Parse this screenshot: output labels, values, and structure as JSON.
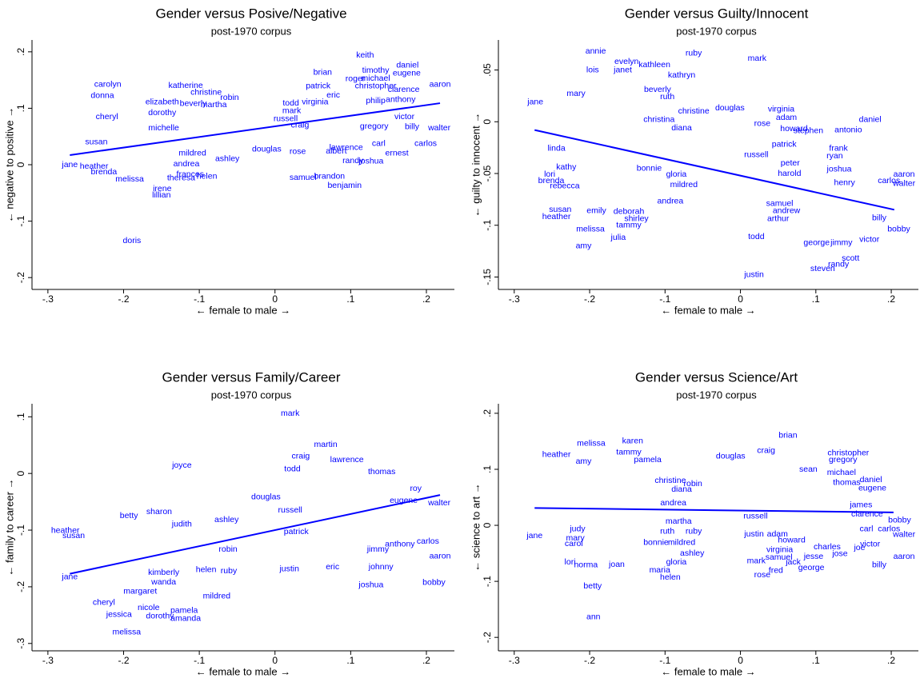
{
  "chart_data": [
    {
      "type": "scatter",
      "title": "Gender versus Posive/Negative",
      "subtitle": "post-1970 corpus",
      "x_label": "← female to male →",
      "y_label": "← negative to positive →",
      "color": "#0000ff",
      "xlim": [
        -0.321,
        0.237
      ],
      "ylim": [
        -0.221,
        0.221
      ],
      "xticks": [
        {
          "value": -0.3,
          "label": "-.3"
        },
        {
          "value": -0.2,
          "label": "-.2"
        },
        {
          "value": -0.1,
          "label": "-.1"
        },
        0,
        {
          "value": 0.1,
          "label": ".1"
        },
        {
          "value": 0.2,
          "label": ".2"
        }
      ],
      "yticks": [
        {
          "value": -0.2,
          "label": "-.2"
        },
        {
          "value": -0.1,
          "label": "-.1"
        },
        0,
        {
          "value": 0.1,
          "label": ".1"
        },
        {
          "value": 0.2,
          "label": ".2"
        }
      ],
      "labels": [
        "keith",
        "daniel",
        "eugene",
        "timothy",
        "michael",
        "aaron",
        "brian",
        "roger",
        "christopher",
        "clarence",
        "anthony",
        "victor",
        "patrick",
        "eric",
        "virginia",
        "todd",
        "mark",
        "russell",
        "craig",
        "philip",
        "gregory",
        "billy",
        "walter",
        "carl",
        "carlos",
        "ernest",
        "lawrence",
        "albert",
        "randy",
        "joshua",
        "samuel",
        "brandon",
        "benjamin",
        "douglas",
        "rose",
        "carolyn",
        "donna",
        "katherine",
        "christine",
        "robin",
        "elizabeth",
        "beverly",
        "martha",
        "dorothy",
        "cheryl",
        "michelle",
        "susan",
        "heather",
        "jane",
        "brenda",
        "melissa",
        "mildred",
        "ashley",
        "theresa",
        "helen",
        "frances",
        "irene",
        "lillian",
        "doris",
        "andrea"
      ],
      "x": [
        0.119,
        0.175,
        0.174,
        0.133,
        0.133,
        0.218,
        0.063,
        0.106,
        0.133,
        0.17,
        0.166,
        0.171,
        0.057,
        0.077,
        0.053,
        0.021,
        0.022,
        0.014,
        0.033,
        0.133,
        0.131,
        0.181,
        0.217,
        0.137,
        0.199,
        0.161,
        0.094,
        0.081,
        0.103,
        0.127,
        0.037,
        0.072,
        0.092,
        -0.011,
        0.03,
        -0.221,
        -0.228,
        -0.118,
        -0.091,
        -0.06,
        -0.149,
        -0.108,
        -0.081,
        -0.149,
        -0.222,
        -0.147,
        -0.236,
        -0.239,
        -0.271,
        -0.226,
        -0.192,
        -0.109,
        -0.063,
        -0.124,
        -0.09,
        -0.112,
        -0.149,
        -0.15,
        -0.189,
        -0.117
      ],
      "y": [
        0.194,
        0.176,
        0.162,
        0.167,
        0.153,
        0.142,
        0.163,
        0.152,
        0.139,
        0.133,
        0.115,
        0.085,
        0.139,
        0.123,
        0.111,
        0.109,
        0.095,
        0.081,
        0.07,
        0.113,
        0.068,
        0.067,
        0.065,
        0.037,
        0.037,
        0.02,
        0.03,
        0.024,
        0.007,
        0.006,
        -0.023,
        -0.021,
        -0.037,
        0.027,
        0.023,
        0.142,
        0.122,
        0.14,
        0.128,
        0.119,
        0.111,
        0.108,
        0.106,
        0.092,
        0.085,
        0.065,
        0.04,
        -0.003,
        0.0,
        -0.013,
        -0.026,
        0.02,
        0.01,
        -0.024,
        -0.021,
        -0.017,
        -0.043,
        -0.054,
        -0.135,
        0.001
      ],
      "fit": {
        "x": [
          -0.271,
          0.218
        ],
        "y": [
          0.017,
          0.109
        ]
      }
    },
    {
      "type": "scatter",
      "title": "Gender versus Guilty/Innocent",
      "subtitle": "post-1970 corpus",
      "x_label": "← female to male →",
      "y_label": "← guilty to innocent →",
      "color": "#0000ff",
      "xlim": [
        -0.321,
        0.236
      ],
      "ylim": [
        -0.162,
        0.079
      ],
      "xticks": [
        {
          "value": -0.3,
          "label": "-.3"
        },
        {
          "value": -0.2,
          "label": "-.2"
        },
        {
          "value": -0.1,
          "label": "-.1"
        },
        0,
        {
          "value": 0.1,
          "label": ".1"
        },
        {
          "value": 0.2,
          "label": ".2"
        }
      ],
      "yticks": [
        {
          "value": -0.15,
          "label": "-.15"
        },
        {
          "value": -0.1,
          "label": "-.1"
        },
        {
          "value": -0.05,
          "label": "-.05"
        },
        0,
        {
          "value": 0.05,
          "label": ".05"
        }
      ],
      "labels": [
        "annie",
        "ruby",
        "mark",
        "evelyn",
        "kathleen",
        "lois",
        "janet",
        "kathryn",
        "beverly",
        "ruth",
        "virginia",
        "adam",
        "rose",
        "douglas",
        "mary",
        "jane",
        "christine",
        "christina",
        "diana",
        "daniel",
        "howard",
        "stephen",
        "antonio",
        "patrick",
        "frank",
        "russell",
        "ryan",
        "peter",
        "joshua",
        "aaron",
        "carlos",
        "walter",
        "henry",
        "harold",
        "gloria",
        "mildred",
        "andrea",
        "linda",
        "kathy",
        "lori",
        "brenda",
        "rebecca",
        "bonnie",
        "susan",
        "heather",
        "emily",
        "deborah",
        "shirley",
        "tammy",
        "melissa",
        "julia",
        "amy",
        "todd",
        "billy",
        "bobby",
        "victor",
        "jimmy",
        "george",
        "scott",
        "randy",
        "steven",
        "justin",
        "samuel",
        "andrew",
        "arthur"
      ],
      "x": [
        -0.192,
        -0.062,
        0.022,
        -0.151,
        -0.114,
        -0.196,
        -0.156,
        -0.078,
        -0.11,
        -0.097,
        0.054,
        0.061,
        0.029,
        -0.014,
        -0.218,
        -0.272,
        -0.062,
        -0.108,
        -0.078,
        0.172,
        0.071,
        0.09,
        0.143,
        0.058,
        0.13,
        0.021,
        0.125,
        0.066,
        0.131,
        0.217,
        0.197,
        0.217,
        0.138,
        0.065,
        -0.085,
        -0.075,
        -0.093,
        -0.244,
        -0.231,
        -0.253,
        -0.251,
        -0.233,
        -0.121,
        -0.239,
        -0.244,
        -0.191,
        -0.148,
        -0.138,
        -0.148,
        -0.199,
        -0.162,
        -0.208,
        0.021,
        0.184,
        0.21,
        0.171,
        0.134,
        0.101,
        0.146,
        0.13,
        0.109,
        0.018,
        0.052,
        0.061,
        0.05
      ],
      "y": [
        0.068,
        0.066,
        0.061,
        0.058,
        0.055,
        0.05,
        0.05,
        0.045,
        0.031,
        0.024,
        0.012,
        0.004,
        -0.002,
        0.013,
        0.027,
        0.019,
        0.01,
        0.002,
        -0.006,
        0.002,
        -0.007,
        -0.009,
        -0.008,
        -0.022,
        -0.026,
        -0.032,
        -0.033,
        -0.04,
        -0.046,
        -0.051,
        -0.057,
        -0.06,
        -0.059,
        -0.05,
        -0.051,
        -0.061,
        -0.077,
        -0.026,
        -0.044,
        -0.051,
        -0.057,
        -0.062,
        -0.045,
        -0.085,
        -0.092,
        -0.086,
        -0.087,
        -0.094,
        -0.1,
        -0.104,
        -0.112,
        -0.12,
        -0.111,
        -0.093,
        -0.104,
        -0.114,
        -0.117,
        -0.117,
        -0.132,
        -0.138,
        -0.142,
        -0.148,
        -0.079,
        -0.086,
        -0.094
      ],
      "fit": {
        "x": [
          -0.273,
          0.204
        ],
        "y": [
          -0.008,
          -0.085
        ]
      }
    },
    {
      "type": "scatter",
      "title": "Gender versus Family/Career",
      "subtitle": "post-1970 corpus",
      "x_label": "← female to male →",
      "y_label": "← family to career →",
      "color": "#0000ff",
      "xlim": [
        -0.321,
        0.237
      ],
      "ylim": [
        -0.313,
        0.123
      ],
      "xticks": [
        {
          "value": -0.3,
          "label": "-.3"
        },
        {
          "value": -0.2,
          "label": "-.2"
        },
        {
          "value": -0.1,
          "label": "-.1"
        },
        0,
        {
          "value": 0.1,
          "label": ".1"
        },
        {
          "value": 0.2,
          "label": ".2"
        }
      ],
      "yticks": [
        {
          "value": -0.3,
          "label": "-.3"
        },
        {
          "value": -0.2,
          "label": "-.2"
        },
        {
          "value": -0.1,
          "label": "-.1"
        },
        0,
        {
          "value": 0.1,
          "label": ".1"
        }
      ],
      "labels": [
        "mark",
        "martin",
        "craig",
        "lawrence",
        "todd",
        "thomas",
        "joyce",
        "douglas",
        "russell",
        "walter",
        "eugene",
        "roy",
        "sharon",
        "betty",
        "ashley",
        "judith",
        "heather",
        "susan",
        "robin",
        "ruby",
        "helen",
        "kimberly",
        "jane",
        "wanda",
        "patrick",
        "jimmy",
        "justin",
        "eric",
        "johnny",
        "aaron",
        "bobby",
        "joshua",
        "carlos",
        "anthony",
        "mildred",
        "margaret",
        "pamela",
        "jessica",
        "dorothy",
        "amanda",
        "nicole",
        "melissa",
        "cheryl"
      ],
      "x": [
        0.02,
        0.067,
        0.034,
        0.095,
        0.023,
        0.141,
        -0.123,
        -0.012,
        0.02,
        0.217,
        0.17,
        0.186,
        -0.153,
        -0.193,
        -0.064,
        -0.123,
        -0.277,
        -0.266,
        -0.062,
        -0.061,
        -0.091,
        -0.147,
        -0.271,
        -0.147,
        0.028,
        0.136,
        0.019,
        0.076,
        0.14,
        0.218,
        0.21,
        0.127,
        0.202,
        0.165,
        -0.077,
        -0.178,
        -0.12,
        -0.206,
        -0.152,
        -0.118,
        -0.167,
        -0.196,
        -0.226
      ],
      "y": [
        0.106,
        0.051,
        0.03,
        0.024,
        0.008,
        0.003,
        0.014,
        -0.042,
        -0.065,
        -0.052,
        -0.048,
        -0.027,
        -0.068,
        -0.075,
        -0.082,
        -0.09,
        -0.101,
        -0.11,
        -0.134,
        -0.172,
        -0.17,
        -0.175,
        -0.183,
        -0.192,
        -0.103,
        -0.134,
        -0.169,
        -0.165,
        -0.165,
        -0.146,
        -0.193,
        -0.197,
        -0.12,
        -0.125,
        -0.217,
        -0.208,
        -0.242,
        -0.249,
        -0.252,
        -0.256,
        -0.237,
        -0.28,
        -0.228
      ],
      "fit": {
        "x": [
          -0.271,
          0.218
        ],
        "y": [
          -0.177,
          -0.038
        ]
      }
    },
    {
      "type": "scatter",
      "title": "Gender versus Science/Art",
      "subtitle": "post-1970 corpus",
      "x_label": "← female to male →",
      "y_label": "← science to art →",
      "color": "#0000ff",
      "xlim": [
        -0.321,
        0.236
      ],
      "ylim": [
        -0.224,
        0.217
      ],
      "xticks": [
        {
          "value": -0.3,
          "label": "-.3"
        },
        {
          "value": -0.2,
          "label": "-.2"
        },
        {
          "value": -0.1,
          "label": "-.1"
        },
        0,
        {
          "value": 0.1,
          "label": ".1"
        },
        {
          "value": 0.2,
          "label": ".2"
        }
      ],
      "yticks": [
        {
          "value": -0.2,
          "label": "-.2"
        },
        {
          "value": -0.1,
          "label": "-.1"
        },
        0,
        {
          "value": 0.1,
          "label": ".1"
        },
        {
          "value": 0.2,
          "label": ".2"
        }
      ],
      "labels": [
        "brian",
        "craig",
        "douglas",
        "christopher",
        "gregory",
        "sean",
        "daniel",
        "eugene",
        "michael",
        "thomas",
        "melissa",
        "karen",
        "tammy",
        "heather",
        "amy",
        "pamela",
        "christine",
        "robin",
        "diana",
        "andrea",
        "martha",
        "ruth",
        "ruby",
        "bonnie",
        "mildred",
        "ashley",
        "gloria",
        "maria",
        "helen",
        "jane",
        "mary",
        "carol",
        "judy",
        "joan",
        "lori",
        "norma",
        "betty",
        "ann",
        "russell",
        "justin",
        "adam",
        "howard",
        "virginia",
        "mark",
        "samuel",
        "jesse",
        "jack",
        "rose",
        "fred",
        "george",
        "jose",
        "joe",
        "victor",
        "aaron",
        "billy",
        "bobby",
        "carlos",
        "walter",
        "clarence",
        "carl",
        "charles",
        "james"
      ],
      "x": [
        0.063,
        0.034,
        -0.013,
        0.143,
        0.136,
        0.09,
        0.173,
        0.175,
        0.134,
        0.141,
        -0.198,
        -0.143,
        -0.148,
        -0.244,
        -0.208,
        -0.123,
        -0.093,
        -0.063,
        -0.078,
        -0.089,
        -0.082,
        -0.097,
        -0.062,
        -0.112,
        -0.078,
        -0.064,
        -0.085,
        -0.107,
        -0.093,
        -0.273,
        -0.219,
        -0.221,
        -0.216,
        -0.164,
        -0.226,
        -0.205,
        -0.196,
        -0.195,
        0.02,
        0.018,
        0.049,
        0.068,
        0.052,
        0.021,
        0.051,
        0.097,
        0.07,
        0.029,
        0.047,
        0.094,
        0.132,
        0.158,
        0.172,
        0.217,
        0.184,
        0.211,
        0.197,
        0.217,
        0.168,
        0.167,
        0.115,
        0.16
      ],
      "y": [
        0.16,
        0.133,
        0.123,
        0.129,
        0.117,
        0.1,
        0.081,
        0.066,
        0.094,
        0.076,
        0.146,
        0.15,
        0.13,
        0.126,
        0.114,
        0.117,
        0.08,
        0.074,
        0.064,
        0.04,
        0.007,
        -0.011,
        -0.011,
        -0.031,
        -0.031,
        -0.05,
        -0.066,
        -0.08,
        -0.093,
        -0.019,
        -0.023,
        -0.033,
        -0.007,
        -0.07,
        -0.066,
        -0.071,
        -0.109,
        -0.164,
        0.016,
        -0.016,
        -0.016,
        -0.027,
        -0.044,
        -0.064,
        -0.057,
        -0.056,
        -0.066,
        -0.089,
        -0.081,
        -0.076,
        -0.051,
        -0.04,
        -0.034,
        -0.056,
        -0.071,
        0.009,
        -0.007,
        -0.017,
        0.02,
        -0.007,
        -0.039,
        0.036
      ],
      "fit": {
        "x": [
          -0.273,
          0.203
        ],
        "y": [
          0.031,
          0.023
        ]
      }
    }
  ]
}
